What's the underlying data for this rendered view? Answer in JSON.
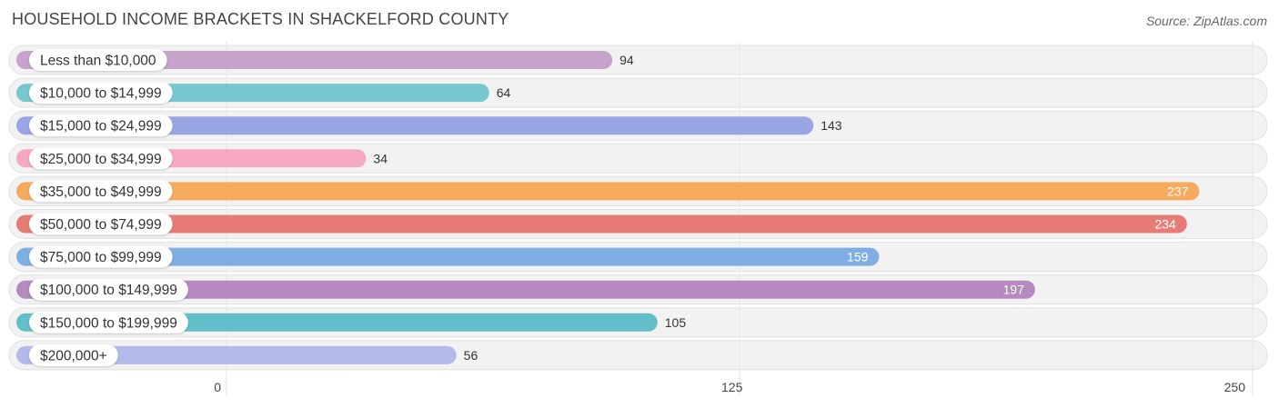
{
  "header": {
    "title": "HOUSEHOLD INCOME BRACKETS IN SHACKELFORD COUNTY",
    "source": "Source: ZipAtlas.com"
  },
  "chart_data": {
    "type": "bar",
    "orientation": "horizontal",
    "title": "HOUSEHOLD INCOME BRACKETS IN SHACKELFORD COUNTY",
    "categories": [
      "Less than $10,000",
      "$10,000 to $14,999",
      "$15,000 to $24,999",
      "$25,000 to $34,999",
      "$35,000 to $49,999",
      "$50,000 to $74,999",
      "$75,000 to $99,999",
      "$100,000 to $149,999",
      "$150,000 to $199,999",
      "$200,000+"
    ],
    "values": [
      94,
      64,
      143,
      34,
      237,
      234,
      159,
      197,
      105,
      56
    ],
    "colors": [
      "#c7a2cb",
      "#77c7cf",
      "#9aa6e3",
      "#f5a8c2",
      "#f6aa5e",
      "#e77c77",
      "#7faee3",
      "#b48abf",
      "#62bfc9",
      "#b3b9ea"
    ],
    "xlim": [
      0,
      250
    ],
    "xticks": [
      0,
      125,
      250
    ],
    "grid": true
  }
}
